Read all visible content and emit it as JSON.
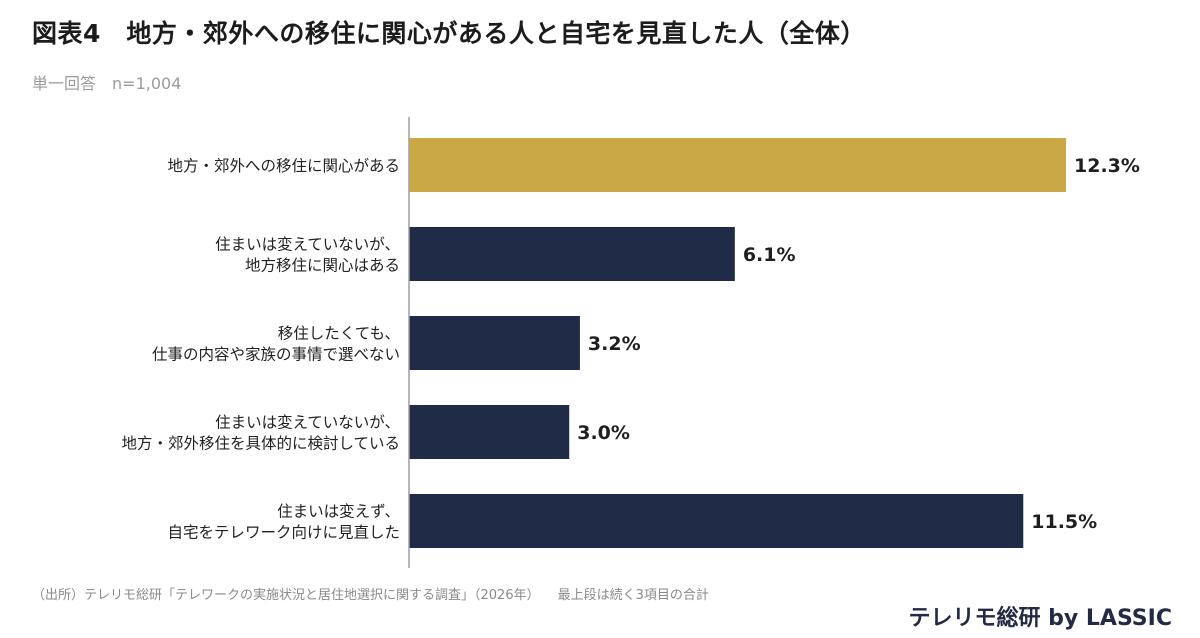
{
  "header": {
    "title": "図表4　地方・郊外への移住に関心がある人と自宅を見直した人（全体）",
    "answer_type": "単一回答",
    "sample_size": "n=1,004"
  },
  "chart_data": {
    "type": "bar",
    "orientation": "horizontal",
    "categories": [
      [
        "地方・郊外への移住に関心がある"
      ],
      [
        "住まいは変えていないが、",
        "地方移住に関心はある"
      ],
      [
        "移住したくても、",
        "仕事の内容や家族の事情で選べない"
      ],
      [
        "住まいは変えていないが、",
        "地方・郊外移住を具体的に検討している"
      ],
      [
        "住まいは変えず、",
        "自宅をテレワーク向けに見直した"
      ]
    ],
    "values": [
      12.3,
      6.1,
      3.2,
      3.0,
      11.5
    ],
    "value_labels": [
      "12.3%",
      "6.1%",
      "3.2%",
      "3.0%",
      "11.5%"
    ],
    "colors": [
      "#c9a845",
      "#202b48",
      "#202b48",
      "#202b48",
      "#202b48"
    ],
    "xlim": [
      0,
      12.3
    ],
    "grid": false,
    "legend": "none"
  },
  "footer": {
    "source": "（出所）テレリモ総研「テレワークの実施状況と居住地選択に関する調査」（2026年）",
    "note": "最上段は続く3項目の合計",
    "brand": "テレリモ総研 by LASSIC"
  }
}
